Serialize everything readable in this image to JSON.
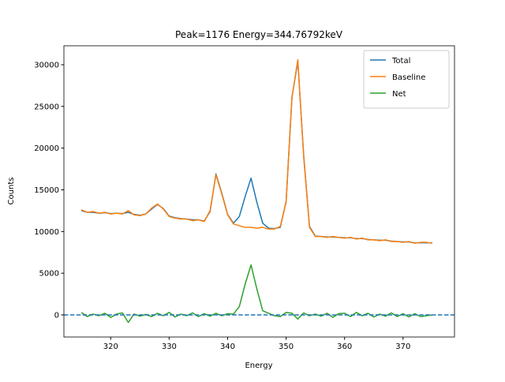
{
  "chart_data": {
    "type": "line",
    "title": "Peak=1176 Energy=344.76792keV",
    "x_label": "Energy",
    "y_label": "Counts",
    "x": [
      315,
      316,
      317,
      318,
      319,
      320,
      321,
      322,
      323,
      324,
      325,
      326,
      327,
      328,
      329,
      330,
      331,
      332,
      333,
      334,
      335,
      336,
      337,
      338,
      339,
      340,
      341,
      342,
      343,
      344,
      345,
      346,
      347,
      348,
      349,
      350,
      351,
      352,
      353,
      354,
      355,
      356,
      357,
      358,
      359,
      360,
      361,
      362,
      363,
      364,
      365,
      366,
      367,
      368,
      369,
      370,
      371,
      372,
      373,
      374,
      375
    ],
    "series": [
      {
        "name": "Total",
        "color": "#1f77b4",
        "values": [
          12500,
          12300,
          12300,
          12200,
          12250,
          12150,
          12200,
          12150,
          12300,
          12050,
          11950,
          12100,
          12700,
          13250,
          12750,
          11850,
          11650,
          11550,
          11500,
          11400,
          11400,
          11250,
          12400,
          16900,
          14600,
          12050,
          11000,
          11800,
          14200,
          16400,
          13500,
          11000,
          10400,
          10350,
          10500,
          13600,
          26100,
          30400,
          19200,
          10600,
          9450,
          9400,
          9350,
          9350,
          9300,
          9250,
          9250,
          9150,
          9150,
          9050,
          9000,
          8950,
          8950,
          8850,
          8800,
          8750,
          8750,
          8650,
          8650,
          8650,
          8650
        ]
      },
      {
        "name": "Baseline",
        "color": "#ff7f0e",
        "values": [
          12600,
          12300,
          12400,
          12200,
          12300,
          12100,
          12200,
          12100,
          12500,
          12000,
          11900,
          12100,
          12800,
          13300,
          12700,
          11800,
          11600,
          11500,
          11500,
          11300,
          11400,
          11200,
          12500,
          16800,
          14500,
          12000,
          10900,
          10700,
          10500,
          10500,
          10400,
          10500,
          10300,
          10300,
          10600,
          13500,
          26000,
          30600,
          19000,
          10500,
          9400,
          9400,
          9300,
          9400,
          9300,
          9200,
          9300,
          9100,
          9200,
          9000,
          9000,
          8900,
          9000,
          8800,
          8800,
          8700,
          8800,
          8600,
          8700,
          8700,
          8600
        ]
      },
      {
        "name": "Net",
        "color": "#2ca02c",
        "values": [
          300,
          -200,
          100,
          -100,
          200,
          -300,
          100,
          250,
          -900,
          100,
          -150,
          50,
          -200,
          200,
          -100,
          300,
          -250,
          100,
          -100,
          250,
          -200,
          150,
          -150,
          200,
          -100,
          150,
          100,
          1000,
          3700,
          6000,
          3100,
          500,
          200,
          -100,
          -200,
          300,
          200,
          -500,
          250,
          -100,
          100,
          -150,
          200,
          -300,
          150,
          200,
          -200,
          300,
          -100,
          200,
          -250,
          100,
          -150,
          250,
          -200,
          150,
          -250,
          150,
          -200,
          -100,
          0
        ]
      }
    ],
    "hline": 0,
    "xlim": [
      312.0,
      378.8
    ],
    "ylim": [
      -2650,
      32270
    ],
    "xticks": [
      320,
      330,
      340,
      350,
      360,
      370
    ],
    "yticks": [
      0,
      5000,
      10000,
      15000,
      20000,
      25000,
      30000
    ],
    "legend": "upper right"
  }
}
